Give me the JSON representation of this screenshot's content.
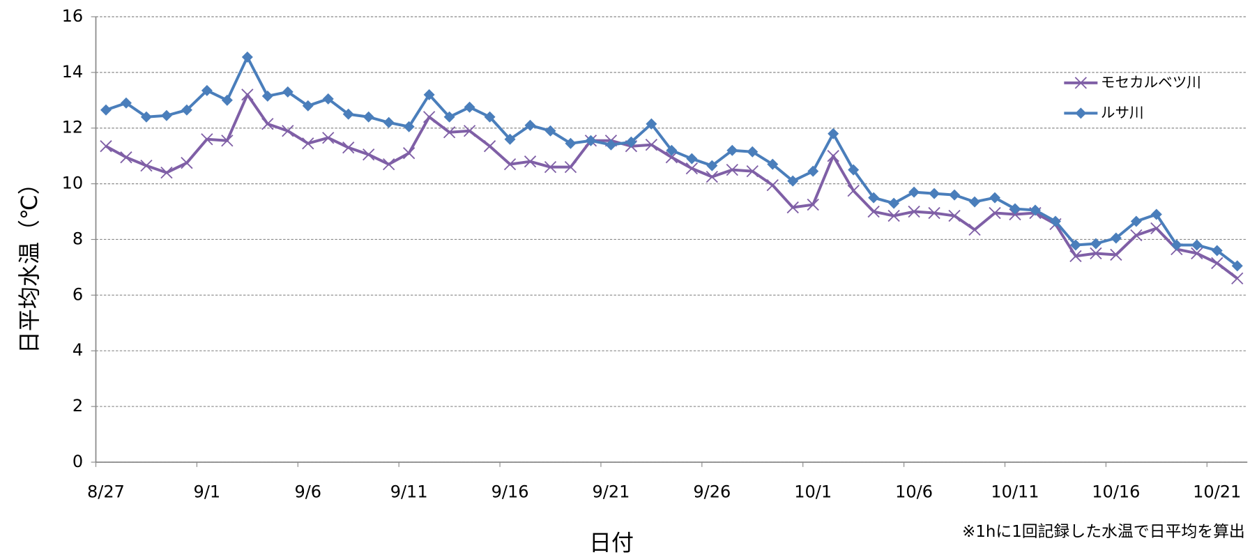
{
  "chart_data": {
    "type": "line",
    "y_label": "日平均水温（℃）",
    "x_label": "日付",
    "note": "※1hに1回記録した水温で日平均を算出",
    "categories": [
      "8/27",
      null,
      null,
      null,
      null,
      "9/1",
      null,
      null,
      null,
      null,
      "9/6",
      null,
      null,
      null,
      null,
      "9/11",
      null,
      null,
      null,
      null,
      "9/16",
      null,
      null,
      null,
      null,
      "9/21",
      null,
      null,
      null,
      null,
      "9/26",
      null,
      null,
      null,
      null,
      "10/1",
      null,
      null,
      null,
      null,
      "10/6",
      null,
      null,
      null,
      null,
      "10/11",
      null,
      null,
      null,
      null,
      "10/16",
      null,
      null,
      null,
      null,
      "10/21",
      null
    ],
    "series": [
      {
        "name": "モセカルベツ川",
        "color": "#7f5fa6",
        "marker": "x",
        "values": [
          11.35,
          10.95,
          10.65,
          10.4,
          10.75,
          11.6,
          11.55,
          13.2,
          12.15,
          11.9,
          11.45,
          11.65,
          11.3,
          11.05,
          10.7,
          11.1,
          12.4,
          11.85,
          11.9,
          11.35,
          10.7,
          10.8,
          10.6,
          10.6,
          11.55,
          11.55,
          11.35,
          11.4,
          10.95,
          10.55,
          10.25,
          10.5,
          10.45,
          9.95,
          9.15,
          9.25,
          11.0,
          9.75,
          9.0,
          8.85,
          9.0,
          8.95,
          8.85,
          8.35,
          8.95,
          8.9,
          8.95,
          8.55,
          7.4,
          7.5,
          7.45,
          8.15,
          8.4,
          7.65,
          7.5,
          7.15,
          6.6
        ]
      },
      {
        "name": "ルサ川",
        "color": "#4a7ebb",
        "marker": "diamond",
        "values": [
          12.65,
          12.9,
          12.4,
          12.45,
          12.65,
          13.35,
          13.0,
          14.55,
          13.15,
          13.3,
          12.8,
          13.05,
          12.5,
          12.4,
          12.2,
          12.05,
          13.2,
          12.4,
          12.75,
          12.4,
          11.6,
          12.1,
          11.9,
          11.45,
          11.55,
          11.4,
          11.5,
          12.15,
          11.2,
          10.9,
          10.65,
          11.2,
          11.15,
          10.7,
          10.1,
          10.45,
          11.8,
          10.5,
          9.5,
          9.3,
          9.7,
          9.65,
          9.6,
          9.35,
          9.5,
          9.1,
          9.05,
          8.65,
          7.8,
          7.85,
          8.05,
          8.65,
          8.9,
          7.8,
          7.8,
          7.6,
          7.05
        ]
      }
    ],
    "ylim": [
      0,
      16
    ],
    "yticks": [
      0,
      2,
      4,
      6,
      8,
      10,
      12,
      14,
      16
    ],
    "grid": true,
    "legend": "upper right"
  }
}
